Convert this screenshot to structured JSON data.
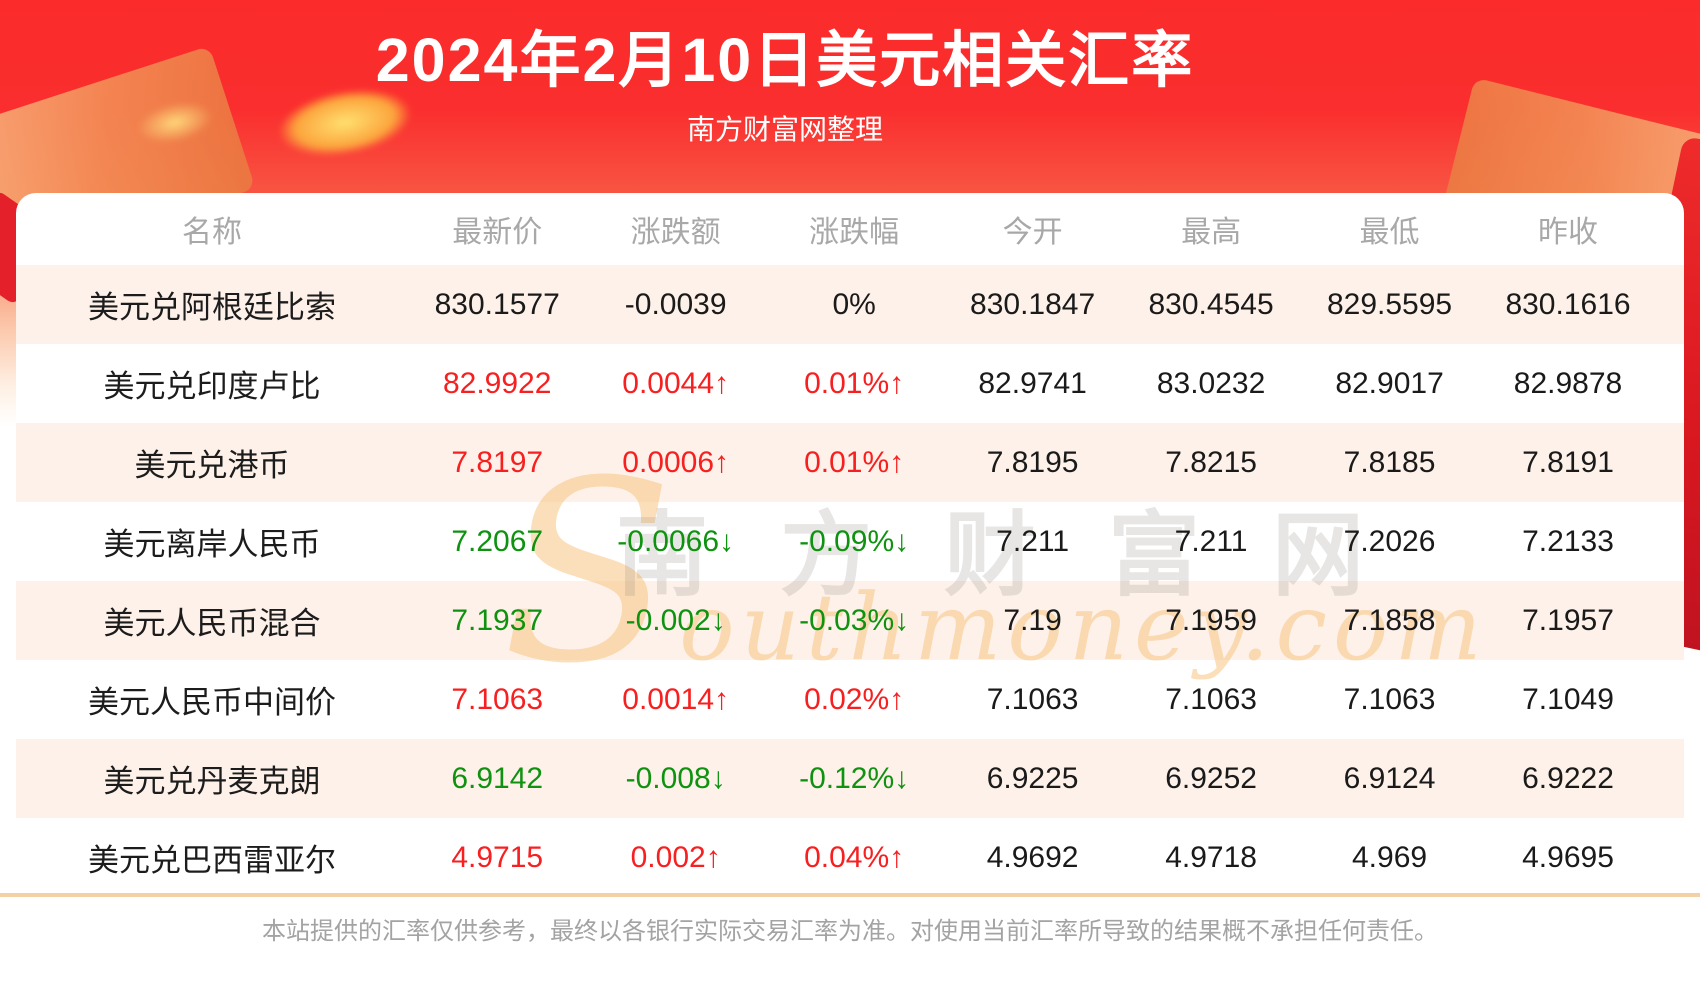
{
  "header": {
    "title": "2024年2月10日美元相关汇率",
    "subtitle": "南方财富网整理"
  },
  "table": {
    "columns": [
      "名称",
      "最新价",
      "涨跌额",
      "涨跌幅",
      "今开",
      "最高",
      "最低",
      "昨收"
    ],
    "rows": [
      {
        "name": "美元兑阿根廷比索",
        "latest": "830.1577",
        "change": "-0.0039",
        "change_pct": "0%",
        "open": "830.1847",
        "high": "830.4545",
        "low": "829.5595",
        "prev_close": "830.1616",
        "trend": "flat"
      },
      {
        "name": "美元兑印度卢比",
        "latest": "82.9922",
        "change": "0.0044↑",
        "change_pct": "0.01%↑",
        "open": "82.9741",
        "high": "83.0232",
        "low": "82.9017",
        "prev_close": "82.9878",
        "trend": "up"
      },
      {
        "name": "美元兑港币",
        "latest": "7.8197",
        "change": "0.0006↑",
        "change_pct": "0.01%↑",
        "open": "7.8195",
        "high": "7.8215",
        "low": "7.8185",
        "prev_close": "7.8191",
        "trend": "up"
      },
      {
        "name": "美元离岸人民币",
        "latest": "7.2067",
        "change": "-0.0066↓",
        "change_pct": "-0.09%↓",
        "open": "7.211",
        "high": "7.211",
        "low": "7.2026",
        "prev_close": "7.2133",
        "trend": "down"
      },
      {
        "name": "美元人民币混合",
        "latest": "7.1937",
        "change": "-0.002↓",
        "change_pct": "-0.03%↓",
        "open": "7.19",
        "high": "7.1959",
        "low": "7.1858",
        "prev_close": "7.1957",
        "trend": "down"
      },
      {
        "name": "美元人民币中间价",
        "latest": "7.1063",
        "change": "0.0014↑",
        "change_pct": "0.02%↑",
        "open": "7.1063",
        "high": "7.1063",
        "low": "7.1063",
        "prev_close": "7.1049",
        "trend": "up"
      },
      {
        "name": "美元兑丹麦克朗",
        "latest": "6.9142",
        "change": "-0.008↓",
        "change_pct": "-0.12%↓",
        "open": "6.9225",
        "high": "6.9252",
        "low": "6.9124",
        "prev_close": "6.9222",
        "trend": "down"
      },
      {
        "name": "美元兑巴西雷亚尔",
        "latest": "4.9715",
        "change": "0.002↑",
        "change_pct": "0.04%↑",
        "open": "4.9692",
        "high": "4.9718",
        "low": "4.969",
        "prev_close": "4.9695",
        "trend": "up"
      }
    ]
  },
  "watermark": {
    "cn": "南方财富网",
    "en": "Southmoney.com"
  },
  "footer": {
    "disclaimer": "本站提供的汇率仅供参考，最终以各银行实际交易汇率为准。对使用当前汇率所导致的结果概不承担任何责任。"
  },
  "colors": {
    "banner_red": "#fa2e2e",
    "up_red": "#f71f1f",
    "down_green": "#0e9210",
    "row_alt_bg": "#fdf1e9",
    "header_text": "#a8a8a8",
    "divider_tan": "#f5d0a2"
  }
}
